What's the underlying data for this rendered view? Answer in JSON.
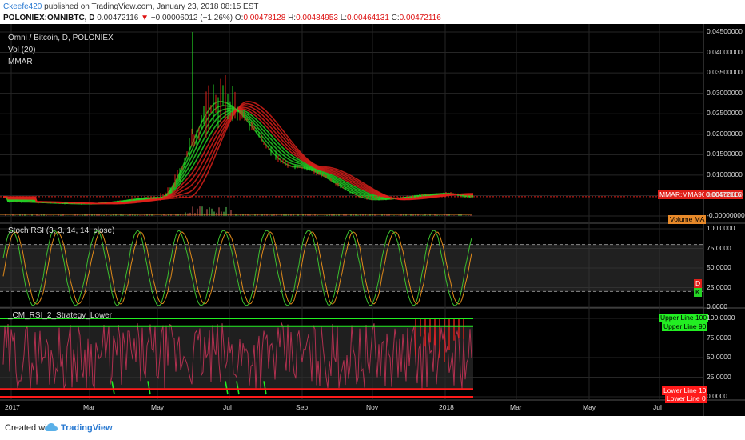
{
  "header": {
    "author": "Ckeefe420",
    "published_text": " published on TradingView.com, January 23, 2018 08:15 EST",
    "symbol": "POLONIEX:OMNIBTC, D",
    "last": "0.00472116",
    "change": "−0.00006012 (−1.26%)",
    "o_label": "O:",
    "o_value": "0.00478128",
    "h_label": "H:",
    "h_value": "0.00484953",
    "l_label": "L:",
    "l_value": "0.00464131",
    "c_label": "C:",
    "c_value": "0.00472116"
  },
  "main_pane": {
    "title": "Omni / Bitcoin, D, POLONIEX",
    "indicator1": "Vol (20)",
    "indicator2": "MMAR",
    "y_ticks": [
      "0.04500000",
      "0.04000000",
      "0.03500000",
      "0.03000000",
      "0.02500000",
      "0.02000000",
      "0.01500000",
      "0.01000000",
      "0.00500000",
      "-0.00000000"
    ],
    "mmar_tag": "MMAR:MMA90",
    "price_tag": "0.00472116",
    "volume_tag": "Volume MA"
  },
  "stoch_pane": {
    "title": "Stoch RSI (3, 3, 14, 14, close)",
    "y_ticks": [
      "100.0000",
      "75.0000",
      "50.0000",
      "25.0000",
      "0.0000"
    ],
    "tag_d": "D",
    "tag_k": "K"
  },
  "rsi_pane": {
    "title": "_CM_RSI_2_Strategy_Lower",
    "y_ticks": [
      "100.0000",
      "75.0000",
      "50.0000",
      "25.0000",
      "0.0000"
    ],
    "tag_upper100": "Upper Line 100",
    "tag_upper90": "Upper Line 90",
    "tag_lower10": "Lower Line 10",
    "tag_lower0": "Lower Line 0"
  },
  "time_axis": [
    "2017",
    "Mar",
    "May",
    "Jul",
    "Sep",
    "Nov",
    "2018",
    "Mar",
    "May",
    "Jul"
  ],
  "footer": {
    "created_with": "Created with",
    "brand": "TradingView"
  },
  "colors": {
    "up": "#26d626",
    "down": "#e0201a",
    "stoch_k": "#3bbf2e",
    "stoch_d": "#e08a1a",
    "rsi_line": "#b0304f",
    "level_green": "#22ee22",
    "level_red": "#ff1a1a"
  },
  "chart_data": {
    "type": "line",
    "x": [
      "2017",
      "Mar",
      "May",
      "Jul",
      "Sep",
      "Nov",
      "2018"
    ],
    "series": [
      {
        "values": [
          0.0035,
          0.003,
          0.0045,
          0.028,
          0.012,
          0.004,
          0.005
        ]
      }
    ],
    "ylim": [
      0,
      0.045
    ]
  }
}
